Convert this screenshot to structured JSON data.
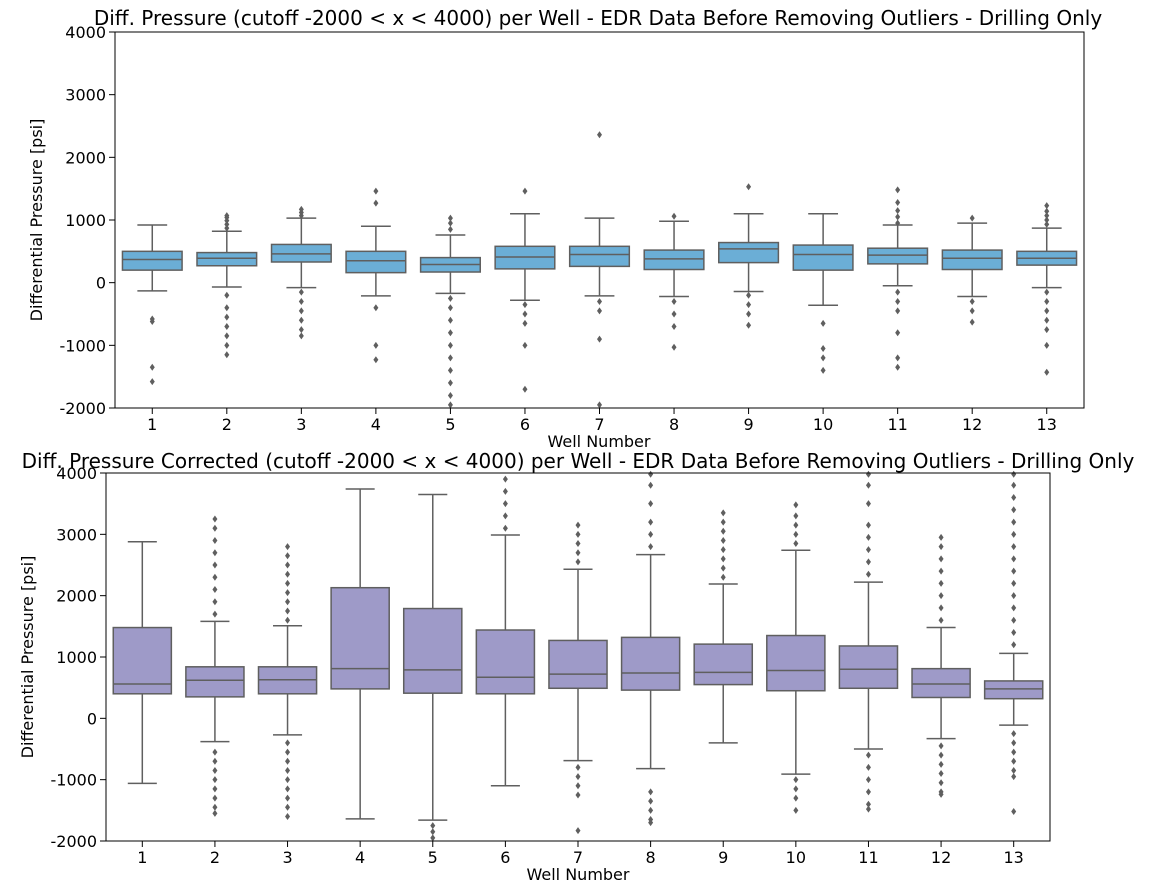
{
  "chart_data": [
    {
      "type": "box",
      "title": "Diff. Pressure (cutoff -2000 < x < 4000) per Well - EDR Data Before Removing Outliers - Drilling Only",
      "xlabel": "Well Number",
      "ylabel": "Differential Pressure [psi]",
      "ylim": [
        -2000,
        4000
      ],
      "yticks": [
        -2000,
        -1000,
        0,
        1000,
        2000,
        3000,
        4000
      ],
      "categories": [
        "1",
        "2",
        "3",
        "4",
        "5",
        "6",
        "7",
        "8",
        "9",
        "10",
        "11",
        "12",
        "13"
      ],
      "box_color": "#6BAED6",
      "series": [
        {
          "category": "1",
          "whisker_low": -130,
          "q1": 200,
          "median": 370,
          "q3": 500,
          "whisker_high": 920,
          "outliers": [
            -580,
            -620,
            -1350,
            -1580
          ]
        },
        {
          "category": "2",
          "whisker_low": -70,
          "q1": 270,
          "median": 390,
          "q3": 480,
          "whisker_high": 820,
          "outliers": [
            870,
            930,
            990,
            1040,
            1070,
            -200,
            -400,
            -550,
            -700,
            -850,
            -1000,
            -1150
          ]
        },
        {
          "category": "3",
          "whisker_low": -80,
          "q1": 330,
          "median": 460,
          "q3": 610,
          "whisker_high": 1030,
          "outliers": [
            1070,
            1120,
            1170,
            -150,
            -300,
            -450,
            -600,
            -750,
            -850
          ]
        },
        {
          "category": "4",
          "whisker_low": -210,
          "q1": 160,
          "median": 350,
          "q3": 500,
          "whisker_high": 900,
          "outliers": [
            1270,
            1460,
            -400,
            -1000,
            -1230
          ]
        },
        {
          "category": "5",
          "whisker_low": -170,
          "q1": 170,
          "median": 290,
          "q3": 400,
          "whisker_high": 760,
          "outliers": [
            850,
            950,
            1030,
            -250,
            -400,
            -600,
            -800,
            -1000,
            -1200,
            -1400,
            -1600,
            -1800,
            -1950
          ]
        },
        {
          "category": "6",
          "whisker_low": -280,
          "q1": 220,
          "median": 410,
          "q3": 580,
          "whisker_high": 1100,
          "outliers": [
            1460,
            -350,
            -500,
            -650,
            -1000,
            -1700
          ]
        },
        {
          "category": "7",
          "whisker_low": -210,
          "q1": 260,
          "median": 450,
          "q3": 580,
          "whisker_high": 1030,
          "outliers": [
            2360,
            -300,
            -450,
            -900,
            -1950
          ]
        },
        {
          "category": "8",
          "whisker_low": -220,
          "q1": 210,
          "median": 380,
          "q3": 520,
          "whisker_high": 980,
          "outliers": [
            1060,
            -300,
            -500,
            -700,
            -1030
          ]
        },
        {
          "category": "9",
          "whisker_low": -140,
          "q1": 320,
          "median": 540,
          "q3": 640,
          "whisker_high": 1100,
          "outliers": [
            1530,
            -200,
            -350,
            -500,
            -680
          ]
        },
        {
          "category": "10",
          "whisker_low": -360,
          "q1": 200,
          "median": 450,
          "q3": 600,
          "whisker_high": 1100,
          "outliers": [
            -650,
            -1050,
            -1200,
            -1400
          ]
        },
        {
          "category": "11",
          "whisker_low": -50,
          "q1": 300,
          "median": 440,
          "q3": 550,
          "whisker_high": 920,
          "outliers": [
            950,
            1050,
            1150,
            1280,
            1480,
            -150,
            -300,
            -450,
            -800,
            -1200,
            -1350
          ]
        },
        {
          "category": "12",
          "whisker_low": -220,
          "q1": 210,
          "median": 390,
          "q3": 520,
          "whisker_high": 950,
          "outliers": [
            1030,
            -300,
            -450,
            -630
          ]
        },
        {
          "category": "13",
          "whisker_low": -80,
          "q1": 280,
          "median": 390,
          "q3": 500,
          "whisker_high": 870,
          "outliers": [
            930,
            1000,
            1070,
            1140,
            1230,
            -150,
            -300,
            -450,
            -600,
            -750,
            -1000,
            -1430
          ]
        }
      ]
    },
    {
      "type": "box",
      "title": "Diff. Pressure Corrected (cutoff -2000 < x < 4000) per Well - EDR Data Before Removing Outliers - Drilling Only",
      "xlabel": "Well Number",
      "ylabel": "Differential Pressure [psi]",
      "ylim": [
        -2000,
        4000
      ],
      "yticks": [
        -2000,
        -1000,
        0,
        1000,
        2000,
        3000,
        4000
      ],
      "categories": [
        "1",
        "2",
        "3",
        "4",
        "5",
        "6",
        "7",
        "8",
        "9",
        "10",
        "11",
        "12",
        "13"
      ],
      "box_color": "#9E9AC8",
      "series": [
        {
          "category": "1",
          "whisker_low": -1060,
          "q1": 400,
          "median": 560,
          "q3": 1480,
          "whisker_high": 2880,
          "outliers": []
        },
        {
          "category": "2",
          "whisker_low": -380,
          "q1": 350,
          "median": 620,
          "q3": 840,
          "whisker_high": 1580,
          "outliers": [
            1700,
            1900,
            2100,
            2300,
            2500,
            2700,
            2900,
            3100,
            3250,
            -550,
            -700,
            -850,
            -1000,
            -1150,
            -1300,
            -1450,
            -1550
          ]
        },
        {
          "category": "3",
          "whisker_low": -270,
          "q1": 400,
          "median": 630,
          "q3": 840,
          "whisker_high": 1510,
          "outliers": [
            1600,
            1750,
            1900,
            2050,
            2200,
            2350,
            2500,
            2650,
            2800,
            -400,
            -550,
            -700,
            -850,
            -1000,
            -1150,
            -1300,
            -1450,
            -1600
          ]
        },
        {
          "category": "4",
          "whisker_low": -1640,
          "q1": 480,
          "median": 810,
          "q3": 2130,
          "whisker_high": 3740,
          "outliers": []
        },
        {
          "category": "5",
          "whisker_low": -1660,
          "q1": 410,
          "median": 790,
          "q3": 1790,
          "whisker_high": 3650,
          "outliers": [
            -1750,
            -1850,
            -1950
          ]
        },
        {
          "category": "6",
          "whisker_low": -1100,
          "q1": 400,
          "median": 670,
          "q3": 1440,
          "whisker_high": 2990,
          "outliers": [
            3100,
            3300,
            3500,
            3700,
            3900
          ]
        },
        {
          "category": "7",
          "whisker_low": -690,
          "q1": 490,
          "median": 720,
          "q3": 1270,
          "whisker_high": 2430,
          "outliers": [
            2550,
            2700,
            2850,
            3000,
            3150,
            -800,
            -950,
            -1100,
            -1250,
            -1830
          ]
        },
        {
          "category": "8",
          "whisker_low": -820,
          "q1": 460,
          "median": 740,
          "q3": 1320,
          "whisker_high": 2670,
          "outliers": [
            2800,
            3000,
            3200,
            3500,
            3800,
            3980,
            -1200,
            -1350,
            -1500,
            -1650,
            -1700
          ]
        },
        {
          "category": "9",
          "whisker_low": -400,
          "q1": 550,
          "median": 750,
          "q3": 1210,
          "whisker_high": 2190,
          "outliers": [
            2300,
            2450,
            2600,
            2750,
            2900,
            3050,
            3200,
            3350
          ]
        },
        {
          "category": "10",
          "whisker_low": -910,
          "q1": 450,
          "median": 780,
          "q3": 1350,
          "whisker_high": 2740,
          "outliers": [
            2850,
            3000,
            3150,
            3300,
            3480,
            -1000,
            -1150,
            -1300,
            -1500
          ]
        },
        {
          "category": "11",
          "whisker_low": -500,
          "q1": 490,
          "median": 800,
          "q3": 1180,
          "whisker_high": 2220,
          "outliers": [
            2350,
            2550,
            2750,
            2950,
            3150,
            3500,
            3800,
            3980,
            -600,
            -800,
            -1000,
            -1200,
            -1400,
            -1480
          ]
        },
        {
          "category": "12",
          "whisker_low": -330,
          "q1": 340,
          "median": 560,
          "q3": 810,
          "whisker_high": 1480,
          "outliers": [
            1600,
            1800,
            2000,
            2200,
            2400,
            2600,
            2800,
            2950,
            -450,
            -600,
            -750,
            -900,
            -1050,
            -1200,
            -1240
          ]
        },
        {
          "category": "13",
          "whisker_low": -110,
          "q1": 320,
          "median": 480,
          "q3": 610,
          "whisker_high": 1060,
          "outliers": [
            1200,
            1400,
            1600,
            1800,
            2000,
            2200,
            2400,
            2600,
            2800,
            3000,
            3200,
            3400,
            3600,
            3800,
            3980,
            -250,
            -400,
            -550,
            -700,
            -850,
            -950,
            -1520
          ]
        }
      ]
    }
  ]
}
